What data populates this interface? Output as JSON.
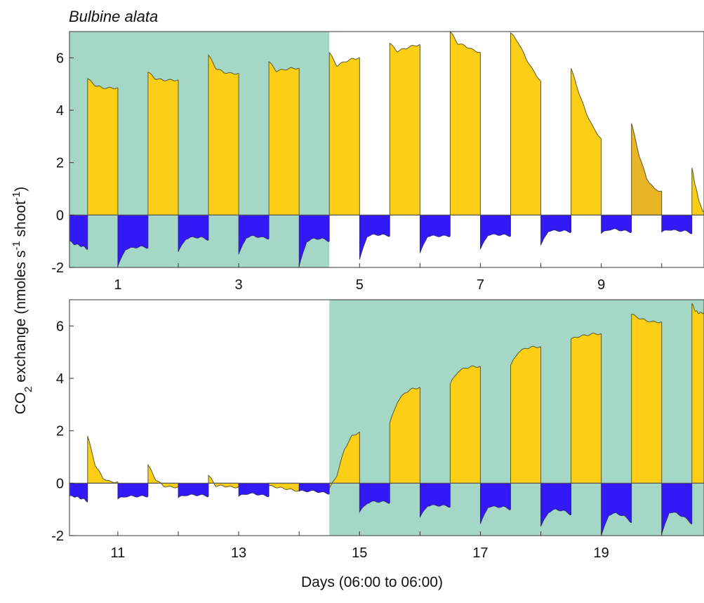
{
  "title": "Bulbine alata",
  "ylabel": {
    "base": "CO",
    "sub": "2",
    "mid": " exchange (nmoles s",
    "sup1": "-1",
    "mid2": " shoot",
    "sup2": "-1",
    "end": ")"
  },
  "xlabel": "Days (06:00 to 06:00)",
  "colors": {
    "shade": "#a4d7c5",
    "day_fill": "#fccf16",
    "day_fill_dim": "#e9b525",
    "night_fill": "#3219f5",
    "trace": "#5a5a2a",
    "frame": "#555555"
  },
  "chart_data": [
    {
      "type": "area",
      "panel": "top",
      "x_range": [
        0.2,
        10.7
      ],
      "ylim": [
        -2,
        7
      ],
      "y_ticks": [
        6,
        4,
        2,
        0,
        -2
      ],
      "x_ticks": [
        1,
        3,
        5,
        7,
        9
      ],
      "shaded_x": [
        [
          0.2,
          4.5
        ]
      ],
      "day_cycles": [
        {
          "start": 0.5,
          "end": 1.0,
          "y": [
            5.2,
            4.95,
            4.85,
            4.85,
            4.85
          ]
        },
        {
          "start": 1.5,
          "end": 2.0,
          "y": [
            5.45,
            5.2,
            5.15,
            5.15,
            5.15
          ]
        },
        {
          "start": 2.5,
          "end": 3.0,
          "y": [
            6.1,
            5.6,
            5.45,
            5.4,
            5.4
          ]
        },
        {
          "start": 3.5,
          "end": 4.0,
          "y": [
            5.85,
            5.5,
            5.55,
            5.6,
            5.6
          ]
        },
        {
          "start": 4.5,
          "end": 5.0,
          "y": [
            6.2,
            5.7,
            5.85,
            5.95,
            6.0
          ]
        },
        {
          "start": 5.5,
          "end": 6.0,
          "y": [
            6.55,
            6.25,
            6.35,
            6.45,
            6.5
          ]
        },
        {
          "start": 6.5,
          "end": 7.0,
          "y": [
            7.0,
            6.55,
            6.45,
            6.3,
            6.2
          ]
        },
        {
          "start": 7.5,
          "end": 8.0,
          "y": [
            6.95,
            6.6,
            6.0,
            5.5,
            5.1
          ]
        },
        {
          "start": 8.5,
          "end": 9.0,
          "y": [
            5.6,
            4.7,
            3.9,
            3.3,
            2.9
          ]
        },
        {
          "start": 9.5,
          "end": 10.0,
          "y": [
            3.5,
            2.3,
            1.4,
            1.0,
            0.9
          ]
        },
        {
          "start": 10.5,
          "end": 10.7,
          "y": [
            1.8,
            1.2,
            0.7,
            0.3,
            0.1
          ]
        }
      ],
      "night_cycles": [
        {
          "start": 0.2,
          "end": 0.5,
          "y": [
            -1.0,
            -1.1,
            -1.15,
            -1.2,
            -1.3
          ]
        },
        {
          "start": 1.0,
          "end": 1.5,
          "y": [
            -1.95,
            -1.3,
            -1.25,
            -1.2,
            -1.25
          ]
        },
        {
          "start": 2.0,
          "end": 2.5,
          "y": [
            -1.4,
            -0.9,
            -0.85,
            -0.85,
            -0.95
          ]
        },
        {
          "start": 3.0,
          "end": 3.5,
          "y": [
            -1.5,
            -0.85,
            -0.8,
            -0.85,
            -0.9
          ]
        },
        {
          "start": 4.0,
          "end": 4.5,
          "y": [
            -1.95,
            -1.0,
            -0.9,
            -0.9,
            -1.0
          ]
        },
        {
          "start": 5.0,
          "end": 5.5,
          "y": [
            -1.7,
            -0.8,
            -0.75,
            -0.75,
            -0.8
          ]
        },
        {
          "start": 6.0,
          "end": 6.5,
          "y": [
            -1.45,
            -0.8,
            -0.8,
            -0.8,
            -0.8
          ]
        },
        {
          "start": 7.0,
          "end": 7.5,
          "y": [
            -1.3,
            -0.75,
            -0.75,
            -0.75,
            -0.8
          ]
        },
        {
          "start": 8.0,
          "end": 8.5,
          "y": [
            -1.15,
            -0.6,
            -0.6,
            -0.6,
            -0.65
          ]
        },
        {
          "start": 9.0,
          "end": 9.5,
          "y": [
            -0.7,
            -0.55,
            -0.55,
            -0.6,
            -0.65
          ]
        },
        {
          "start": 10.0,
          "end": 10.5,
          "y": [
            -0.65,
            -0.55,
            -0.6,
            -0.6,
            -0.7
          ]
        }
      ]
    },
    {
      "type": "area",
      "panel": "bottom",
      "x_range": [
        10.2,
        20.7
      ],
      "ylim": [
        -2,
        7
      ],
      "y_ticks": [
        6,
        4,
        2,
        0,
        -2
      ],
      "x_ticks": [
        11,
        13,
        15,
        17,
        19
      ],
      "shaded_x": [
        [
          14.5,
          20.7
        ]
      ],
      "day_cycles": [
        {
          "start": 10.5,
          "end": 11.0,
          "y": [
            1.8,
            0.7,
            0.2,
            0.05,
            0.05
          ]
        },
        {
          "start": 11.5,
          "end": 12.0,
          "y": [
            0.7,
            0.15,
            -0.1,
            -0.15,
            -0.15
          ]
        },
        {
          "start": 12.5,
          "end": 13.0,
          "y": [
            0.3,
            -0.1,
            -0.1,
            -0.15,
            -0.15
          ]
        },
        {
          "start": 13.5,
          "end": 14.0,
          "y": [
            -0.1,
            -0.15,
            -0.2,
            -0.25,
            -0.3
          ]
        },
        {
          "start": 14.5,
          "end": 15.0,
          "y": [
            -0.2,
            0.3,
            1.3,
            1.8,
            1.95
          ]
        },
        {
          "start": 15.5,
          "end": 16.0,
          "y": [
            2.3,
            3.1,
            3.45,
            3.6,
            3.65
          ]
        },
        {
          "start": 16.5,
          "end": 17.0,
          "y": [
            3.8,
            4.25,
            4.4,
            4.45,
            4.45
          ]
        },
        {
          "start": 17.5,
          "end": 18.0,
          "y": [
            4.5,
            5.0,
            5.15,
            5.2,
            5.2
          ]
        },
        {
          "start": 18.5,
          "end": 19.0,
          "y": [
            5.5,
            5.6,
            5.65,
            5.7,
            5.7
          ]
        },
        {
          "start": 19.5,
          "end": 20.0,
          "y": [
            6.45,
            6.3,
            6.2,
            6.15,
            6.15
          ]
        },
        {
          "start": 20.5,
          "end": 20.7,
          "y": [
            6.85,
            6.6,
            6.5,
            6.5,
            6.5
          ]
        }
      ],
      "night_cycles": [
        {
          "start": 10.2,
          "end": 10.5,
          "y": [
            -0.5,
            -0.5,
            -0.55,
            -0.6,
            -0.7
          ]
        },
        {
          "start": 11.0,
          "end": 11.5,
          "y": [
            -0.6,
            -0.5,
            -0.5,
            -0.5,
            -0.5
          ]
        },
        {
          "start": 12.0,
          "end": 12.5,
          "y": [
            -0.55,
            -0.45,
            -0.45,
            -0.45,
            -0.5
          ]
        },
        {
          "start": 13.0,
          "end": 13.5,
          "y": [
            -0.5,
            -0.4,
            -0.4,
            -0.45,
            -0.5
          ]
        },
        {
          "start": 14.0,
          "end": 14.5,
          "y": [
            -0.3,
            -0.3,
            -0.3,
            -0.35,
            -0.4
          ]
        },
        {
          "start": 15.0,
          "end": 15.5,
          "y": [
            -1.1,
            -0.75,
            -0.7,
            -0.7,
            -0.75
          ]
        },
        {
          "start": 16.0,
          "end": 16.5,
          "y": [
            -1.3,
            -0.85,
            -0.85,
            -0.85,
            -0.9
          ]
        },
        {
          "start": 17.0,
          "end": 17.5,
          "y": [
            -1.55,
            -0.9,
            -0.9,
            -0.9,
            -1.0
          ]
        },
        {
          "start": 18.0,
          "end": 18.5,
          "y": [
            -1.65,
            -1.1,
            -1.0,
            -1.05,
            -1.2
          ]
        },
        {
          "start": 19.0,
          "end": 19.5,
          "y": [
            -2.0,
            -1.2,
            -1.15,
            -1.25,
            -1.5
          ]
        },
        {
          "start": 20.0,
          "end": 20.5,
          "y": [
            -1.95,
            -1.1,
            -1.15,
            -1.3,
            -1.55
          ]
        }
      ]
    }
  ]
}
